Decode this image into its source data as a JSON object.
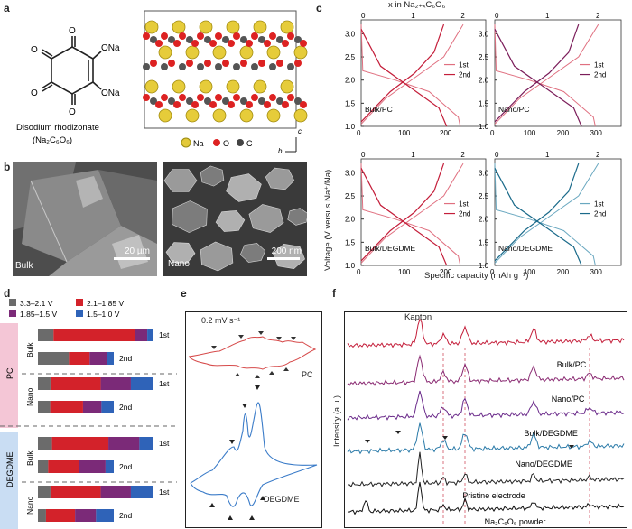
{
  "panels": {
    "a": "a",
    "b": "b",
    "c": "c",
    "d": "d",
    "e": "e",
    "f": "f"
  },
  "panel_a": {
    "o_label": "O",
    "ona_label": "ONa",
    "molecule_name": "Disodium rhodizonate",
    "formula": "(Na₂C₆O₆)",
    "legend": {
      "na": "Na",
      "o": "O",
      "c": "C"
    },
    "axis_b": "b",
    "axis_c": "c"
  },
  "panel_b": {
    "left": {
      "label": "Bulk",
      "scale": "20 µm"
    },
    "right": {
      "label": "Nano",
      "scale": "200 nm"
    }
  },
  "panel_c": {
    "top_axis_label": "x in Na₂₊ₓC₆O₆",
    "ylabel": "Voltage (V versus Na⁺/Na)",
    "xlabel": "Specific capacity (mAh g⁻¹)",
    "legend": [
      "1st",
      "2nd"
    ],
    "colors": {
      "c1": "#c41e3a",
      "c2": "#7b1d5a",
      "c3": "#c41e3a",
      "c4": "#1a6a8a"
    },
    "subplots": [
      {
        "label": "Bulk/PC",
        "xmax": 300,
        "top_ticks": [
          "0",
          "1",
          "2"
        ],
        "xticks": [
          "0",
          "100",
          "200"
        ],
        "yticks": [
          "1.0",
          "1.5",
          "2.0",
          "2.5",
          "3.0"
        ]
      },
      {
        "label": "Nano/PC",
        "xmax": 380,
        "top_ticks": [
          "0",
          "1",
          "2"
        ],
        "xticks": [
          "0",
          "100",
          "200",
          "300"
        ],
        "yticks": [
          "1.0",
          "1.5",
          "2.0",
          "2.5",
          "3.0"
        ]
      },
      {
        "label": "Bulk/DEGDME",
        "xmax": 300,
        "top_ticks": [
          "0",
          "1",
          "2"
        ],
        "xticks": [
          "0",
          "100",
          "200"
        ],
        "yticks": [
          "1.0",
          "1.5",
          "2.0",
          "2.5",
          "3.0"
        ]
      },
      {
        "label": "Nano/DEGDME",
        "xmax": 380,
        "top_ticks": [
          "0",
          "1",
          "2"
        ],
        "xticks": [
          "0",
          "100",
          "200",
          "300"
        ],
        "yticks": [
          "1.0",
          "1.5",
          "2.0",
          "2.5",
          "3.0"
        ]
      }
    ]
  },
  "panel_d": {
    "legend": [
      {
        "label": "3.3–2.1 V",
        "color": "#6b6b6b"
      },
      {
        "label": "2.1–1.85 V",
        "color": "#d3222a"
      },
      {
        "label": "1.85–1.5 V",
        "color": "#7b2a78"
      },
      {
        "label": "1.5–1.0 V",
        "color": "#2f63b8"
      }
    ],
    "groups": [
      {
        "name": "PC",
        "color": "#f4c6d6",
        "sub": [
          {
            "name": "Bulk",
            "bars": [
              {
                "cycle": "1st",
                "v": [
                  0.1,
                  0.52,
                  0.08,
                  0.04
                ]
              },
              {
                "cycle": "2nd",
                "v": [
                  0.18,
                  0.12,
                  0.1,
                  0.04
                ]
              }
            ]
          },
          {
            "name": "Nano",
            "bars": [
              {
                "cycle": "1st",
                "v": [
                  0.1,
                  0.4,
                  0.24,
                  0.18
                ]
              },
              {
                "cycle": "2nd",
                "v": [
                  0.12,
                  0.32,
                  0.18,
                  0.12
                ]
              }
            ]
          }
        ]
      },
      {
        "name": "DEGDME",
        "color": "#c9ddf3",
        "sub": [
          {
            "name": "Bulk",
            "bars": [
              {
                "cycle": "1st",
                "v": [
                  0.1,
                  0.4,
                  0.22,
                  0.1
                ]
              },
              {
                "cycle": "2nd",
                "v": [
                  0.1,
                  0.3,
                  0.26,
                  0.08
                ]
              }
            ]
          },
          {
            "name": "Nano",
            "bars": [
              {
                "cycle": "1st",
                "v": [
                  0.1,
                  0.4,
                  0.24,
                  0.18
                ]
              },
              {
                "cycle": "2nd",
                "v": [
                  0.1,
                  0.36,
                  0.26,
                  0.22
                ]
              }
            ]
          }
        ]
      }
    ]
  },
  "panel_e": {
    "scan_rate": "0.2 mV s⁻¹",
    "labels": {
      "pc": "PC",
      "degdme": "DEGDME"
    },
    "colors": {
      "pc": "#d64a4a",
      "degdme": "#3a7bc8"
    }
  },
  "panel_f": {
    "ylabel": "Intensity (a.u.)",
    "peak_label": "Kapton",
    "traces": [
      {
        "label": "Bulk/PC",
        "color": "#c41e3a"
      },
      {
        "label": "Nano/PC",
        "color": "#8a2a72"
      },
      {
        "label": "Bulk/DEGDME",
        "color": "#6a2a8a"
      },
      {
        "label": "Nano/DEGDME",
        "color": "#2a7aa8"
      },
      {
        "label": "Pristine electrode",
        "color": "#222222"
      },
      {
        "label": "Na₂C₆O₆ powder",
        "color": "#111111"
      }
    ]
  }
}
